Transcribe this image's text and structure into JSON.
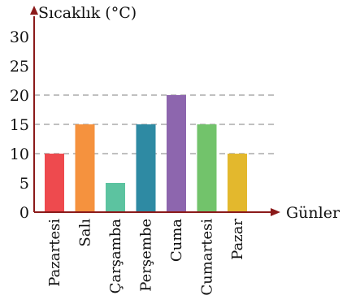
{
  "chart_data": {
    "type": "bar",
    "title": "",
    "ylabel": "Sıcaklık (°C)",
    "xlabel": "Günler",
    "categories": [
      "Pazartesi",
      "Salı",
      "Çarşamba",
      "Perşembe",
      "Cuma",
      "Cumartesi",
      "Pazar"
    ],
    "values": [
      10,
      15,
      5,
      15,
      20,
      15,
      10
    ],
    "colors": [
      "#ee4a4e",
      "#f5923e",
      "#5cc3a0",
      "#2e8aa3",
      "#8d66ae",
      "#72c36b",
      "#e3b82d"
    ],
    "yticks": [
      "0",
      "5",
      "10",
      "15",
      "20",
      "25",
      "30"
    ],
    "ylim": [
      0,
      32
    ],
    "grid": "dashed lines at 10, 15 and 20",
    "gridlines_at": [
      10,
      15,
      20
    ],
    "axis_color": "#8b1a1a",
    "legend": "none"
  }
}
